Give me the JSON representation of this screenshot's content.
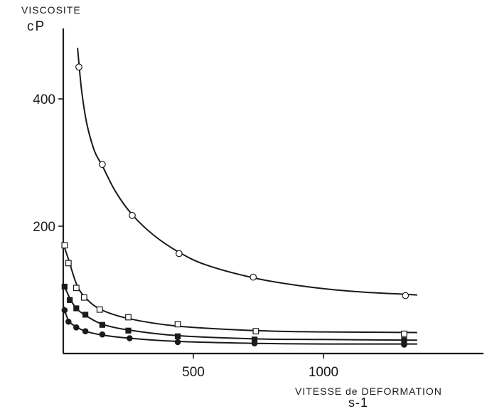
{
  "chart_data": {
    "type": "scatter",
    "title": "",
    "ylabel_line1": "VISCOSITE",
    "ylabel_line2": "cP",
    "xlabel_line1": "VITESSE de DEFORMATION",
    "xlabel_line2": "s-1",
    "xlim": [
      0,
      1500
    ],
    "ylim": [
      0,
      500
    ],
    "x_ticks": [
      500,
      1000
    ],
    "x_tick_labels": [
      "500",
      "1000"
    ],
    "y_ticks": [
      200,
      400
    ],
    "y_tick_labels": [
      "200",
      "400"
    ],
    "grid": false,
    "legend": "none",
    "series": [
      {
        "marker": "open-circle",
        "x": [
          60,
          150,
          265,
          445,
          730,
          1315
        ],
        "y": [
          450,
          297,
          217,
          157,
          120,
          91
        ],
        "curve_x": [
          55,
          70,
          90,
          120,
          150,
          200,
          265,
          350,
          445,
          550,
          730,
          900,
          1100,
          1315,
          1360
        ],
        "curve_y": [
          480,
          415,
          362,
          318,
          295,
          255,
          218,
          185,
          159,
          139,
          119,
          107,
          98,
          93,
          92
        ]
      },
      {
        "marker": "open-square",
        "x": [
          5,
          20,
          50,
          80,
          140,
          250,
          440,
          740,
          1310
        ],
        "y": [
          170,
          142,
          103,
          88,
          69,
          57,
          46,
          35,
          31
        ],
        "curve_x": [
          0,
          20,
          50,
          80,
          140,
          250,
          440,
          740,
          1000,
          1360
        ],
        "curve_y": [
          172,
          148,
          110,
          90,
          70,
          55,
          43,
          36,
          34,
          33
        ]
      },
      {
        "marker": "filled-square",
        "x": [
          5,
          25,
          50,
          85,
          150,
          250,
          440,
          735,
          1310
        ],
        "y": [
          105,
          84,
          71,
          61,
          45,
          36,
          27,
          22,
          21
        ],
        "curve_x": [
          0,
          25,
          50,
          85,
          150,
          250,
          440,
          735,
          1000,
          1360
        ],
        "curve_y": [
          110,
          87,
          71,
          60,
          46,
          37,
          28,
          23,
          22,
          21
        ]
      },
      {
        "marker": "filled-circle",
        "x": [
          5,
          20,
          50,
          85,
          150,
          255,
          440,
          735,
          1310
        ],
        "y": [
          68,
          50,
          41,
          35,
          30,
          24,
          18,
          16,
          14
        ],
        "curve_x": [
          0,
          20,
          50,
          85,
          150,
          255,
          440,
          735,
          1000,
          1360
        ],
        "curve_y": [
          75,
          52,
          42,
          35,
          29,
          24,
          19,
          16,
          15,
          15
        ]
      }
    ]
  }
}
